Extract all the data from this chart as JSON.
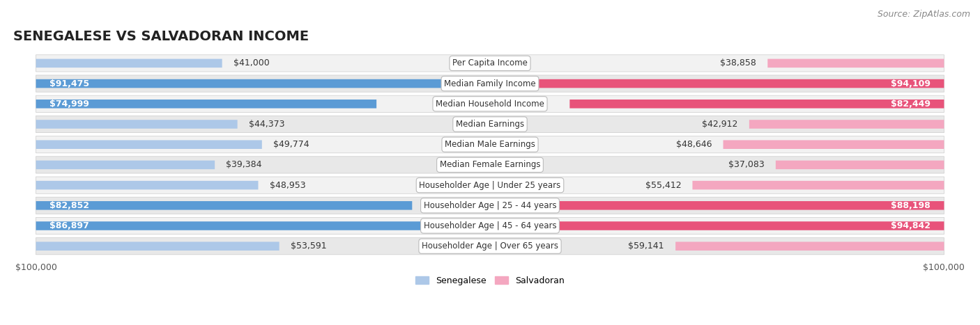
{
  "title": "SENEGALESE VS SALVADORAN INCOME",
  "source": "Source: ZipAtlas.com",
  "categories": [
    "Per Capita Income",
    "Median Family Income",
    "Median Household Income",
    "Median Earnings",
    "Median Male Earnings",
    "Median Female Earnings",
    "Householder Age | Under 25 years",
    "Householder Age | 25 - 44 years",
    "Householder Age | 45 - 64 years",
    "Householder Age | Over 65 years"
  ],
  "senegalese": [
    41000,
    91475,
    74999,
    44373,
    49774,
    39384,
    48953,
    82852,
    86897,
    53591
  ],
  "salvadoran": [
    38858,
    94109,
    82449,
    42912,
    48646,
    37083,
    55412,
    88198,
    94842,
    59141
  ],
  "max_val": 100000,
  "sen_color_light": "#adc8e8",
  "sen_color_dark": "#5b9bd5",
  "sal_color_light": "#f4a7c0",
  "sal_color_dark": "#e8537a",
  "threshold": 0.6,
  "row_bg_light": "#f2f2f2",
  "row_bg_dark": "#e8e8e8",
  "label_bg": "#ffffff",
  "title_fontsize": 14,
  "source_fontsize": 9,
  "bar_label_fontsize": 9,
  "cat_label_fontsize": 8.5,
  "axis_label_fontsize": 9,
  "legend_fontsize": 9
}
